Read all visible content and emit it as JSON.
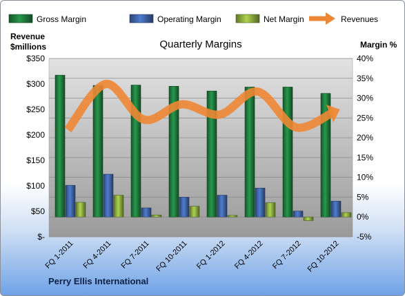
{
  "chart_data": {
    "type": "bar",
    "title": "Quarterly Margins",
    "left_axis_label_line1": "Revenue",
    "left_axis_label_line2": "$millions",
    "right_axis_label": "Margin %",
    "categories": [
      "FQ 1-2011",
      "FQ 4-2011",
      "FQ 7-2011",
      "FQ 10-2011",
      "FQ 1-2012",
      "FQ 4-2012",
      "FQ 7-2012",
      "FQ 10-2012"
    ],
    "left_ticks": [
      "$-",
      "$50",
      "$100",
      "$150",
      "$200",
      "$250",
      "$300",
      "$350"
    ],
    "left_ylim": [
      0,
      350
    ],
    "right_ticks": [
      "-5%",
      "0%",
      "5%",
      "10%",
      "15%",
      "20%",
      "25%",
      "30%",
      "35%",
      "40%"
    ],
    "right_ylim": [
      -5,
      40
    ],
    "series": [
      {
        "name": "Gross Margin",
        "kind": "bar",
        "axis": "right",
        "color": "#1f7a3c",
        "values": [
          35.8,
          33.2,
          33.3,
          33.0,
          31.8,
          32.8,
          32.8,
          31.2
        ]
      },
      {
        "name": "Operating Margin",
        "kind": "bar",
        "axis": "right",
        "color": "#3f63a5",
        "values": [
          8.0,
          10.8,
          2.3,
          5.0,
          5.5,
          7.3,
          1.5,
          4.0
        ]
      },
      {
        "name": "Net Margin",
        "kind": "bar",
        "axis": "right",
        "color": "#8aa93e",
        "values": [
          3.7,
          5.5,
          0.5,
          2.7,
          0.4,
          3.6,
          -0.9,
          1.1
        ]
      },
      {
        "name": "Revenues",
        "kind": "line",
        "axis": "left",
        "color": "#ee8734",
        "values": [
          210,
          300,
          230,
          260,
          240,
          285,
          215,
          245
        ]
      }
    ],
    "grid": true,
    "legend_position": "top"
  },
  "footer": {
    "company": "Perry Ellis International"
  }
}
